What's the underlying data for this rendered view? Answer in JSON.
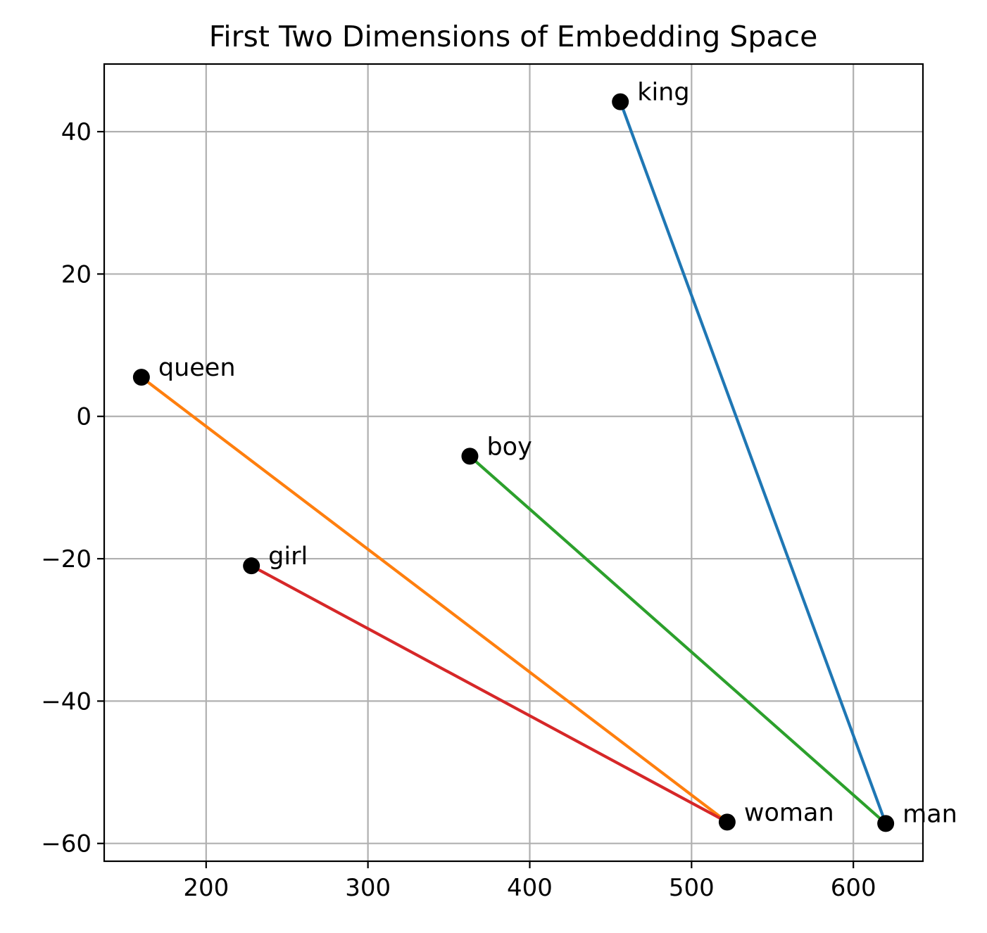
{
  "chart_data": {
    "type": "scatter",
    "title": "First Two Dimensions of Embedding Space",
    "xlabel": "",
    "ylabel": "",
    "xlim": [
      137,
      643
    ],
    "ylim": [
      -62.5,
      49.5
    ],
    "x_ticks": [
      200,
      300,
      400,
      500,
      600
    ],
    "y_ticks": [
      40,
      20,
      0,
      -20,
      -40,
      -60
    ],
    "x_tick_labels": [
      "200",
      "300",
      "400",
      "500",
      "600"
    ],
    "y_tick_labels": [
      "40",
      "20",
      "0",
      "−20",
      "−40",
      "−60"
    ],
    "grid": true,
    "points": [
      {
        "label": "king",
        "x": 456,
        "y": 44.2
      },
      {
        "label": "queen",
        "x": 160,
        "y": 5.5
      },
      {
        "label": "boy",
        "x": 363,
        "y": -5.6
      },
      {
        "label": "girl",
        "x": 228,
        "y": -21.0
      },
      {
        "label": "woman",
        "x": 522,
        "y": -57.0
      },
      {
        "label": "man",
        "x": 620,
        "y": -57.2
      }
    ],
    "lines": [
      {
        "from": "king",
        "to": "man",
        "color": "#1f77b4"
      },
      {
        "from": "queen",
        "to": "woman",
        "color": "#ff7f0e"
      },
      {
        "from": "boy",
        "to": "man",
        "color": "#2ca02c"
      },
      {
        "from": "girl",
        "to": "woman",
        "color": "#d62728"
      }
    ],
    "marker_color": "#000000"
  }
}
